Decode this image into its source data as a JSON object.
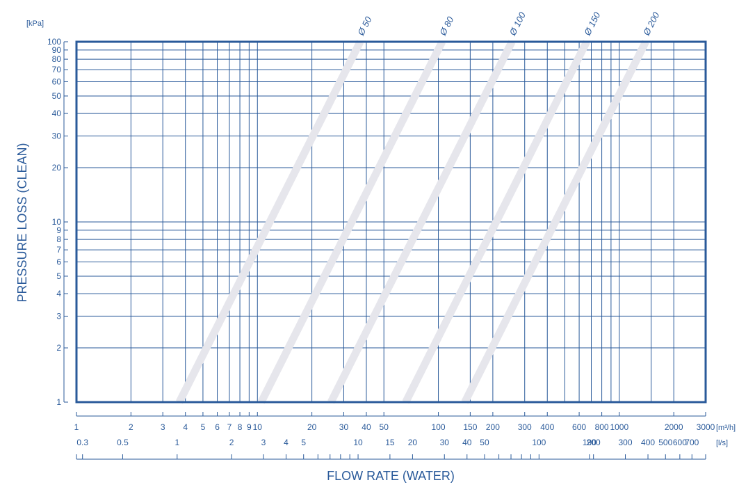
{
  "chart_data": {
    "type": "line",
    "scale": "log-log",
    "xlabel": "FLOW RATE (WATER)",
    "ylabel": "PRESSURE LOSS (CLEAN)",
    "y_unit": "[kPa]",
    "x_unit_primary": "[m³/h]",
    "x_unit_secondary": "[l/s]",
    "xlim_m3h": [
      1,
      3000
    ],
    "ylim_kpa": [
      1,
      100
    ],
    "grid": true,
    "y_ticks": [
      1,
      2,
      3,
      4,
      5,
      6,
      7,
      8,
      9,
      10,
      20,
      30,
      40,
      50,
      60,
      70,
      80,
      90,
      100
    ],
    "y_tick_labels": [
      "1",
      "2",
      "3",
      "4",
      "5",
      "6",
      "7",
      "8",
      "9",
      "10",
      "20",
      "30",
      "40",
      "50",
      "60",
      "70",
      "80",
      "90",
      "100"
    ],
    "x_grid_m3h": [
      2,
      3,
      4,
      5,
      6,
      7,
      8,
      9,
      10,
      20,
      30,
      40,
      50,
      100,
      150,
      200,
      300,
      400,
      500,
      600,
      700,
      800,
      900,
      1000,
      1500,
      2000
    ],
    "x_ticks_primary": [
      1,
      2,
      3,
      4,
      5,
      6,
      7,
      8,
      9,
      10,
      20,
      30,
      40,
      50,
      100,
      150,
      200,
      300,
      400,
      600,
      800,
      1000,
      2000,
      3000
    ],
    "x_tick_labels_primary": [
      "1",
      "2",
      "3",
      "4",
      "5",
      "6",
      "7",
      "8",
      "9",
      "10",
      "20",
      "30",
      "40",
      "50",
      "100",
      "150",
      "200",
      "300",
      "400",
      "600",
      "800",
      "1000",
      "2000",
      "3000"
    ],
    "x_ticks_secondary_ls": [
      0.3,
      0.5,
      1,
      2,
      3,
      4,
      5,
      10,
      15,
      20,
      30,
      40,
      50,
      100,
      190,
      200,
      300,
      400,
      500,
      600,
      700
    ],
    "x_tick_labels_secondary": [
      "0.3",
      "0.5",
      "1",
      "2",
      "3",
      "4",
      "5",
      "10",
      "15",
      "20",
      "30",
      "40",
      "50",
      "100",
      "190",
      "200",
      "300",
      "400",
      "500",
      "600",
      "700"
    ],
    "x_minor_secondary_ls": [
      6,
      7,
      8,
      9,
      60,
      70,
      80,
      90
    ],
    "series": [
      {
        "name": "Ø 50",
        "points": [
          [
            3.7,
            1
          ],
          [
            37,
            100
          ]
        ]
      },
      {
        "name": "Ø 80",
        "points": [
          [
            10.5,
            1
          ],
          [
            105,
            100
          ]
        ]
      },
      {
        "name": "Ø 100",
        "points": [
          [
            25.5,
            1
          ],
          [
            255,
            100
          ]
        ]
      },
      {
        "name": "Ø 150",
        "points": [
          [
            66,
            1
          ],
          [
            660,
            100
          ]
        ]
      },
      {
        "name": "Ø 200",
        "points": [
          [
            140,
            1
          ],
          [
            1400,
            100
          ]
        ]
      }
    ],
    "colors": {
      "grid": "#2a5a9a",
      "curve": "#e6e6ec",
      "text": "#2a5a9a"
    }
  }
}
